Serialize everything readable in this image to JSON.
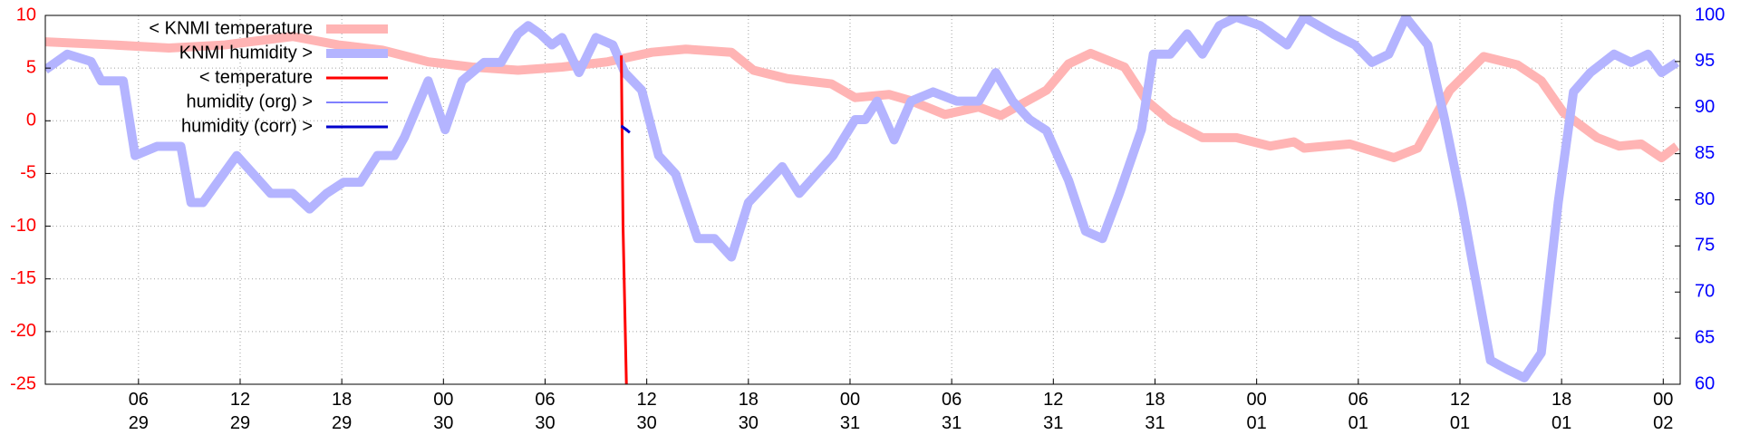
{
  "chart_data": {
    "type": "line",
    "xlim": [
      0.5,
      97
    ],
    "xticks": [
      {
        "value": 6,
        "label": "06\n29"
      },
      {
        "value": 12,
        "label": "12\n29"
      },
      {
        "value": 18,
        "label": "18\n29"
      },
      {
        "value": 24,
        "label": "00\n30"
      },
      {
        "value": 30,
        "label": "06\n30"
      },
      {
        "value": 36,
        "label": "12\n30"
      },
      {
        "value": 42,
        "label": "18\n30"
      },
      {
        "value": 48,
        "label": "00\n31"
      },
      {
        "value": 54,
        "label": "06\n31"
      },
      {
        "value": 60,
        "label": "12\n31"
      },
      {
        "value": 66,
        "label": "18\n31"
      },
      {
        "value": 72,
        "label": "00\n01"
      },
      {
        "value": 78,
        "label": "06\n01"
      },
      {
        "value": 84,
        "label": "12\n01"
      },
      {
        "value": 90,
        "label": "18\n01"
      },
      {
        "value": 96,
        "label": "00\n02"
      }
    ],
    "ylim": [
      -25,
      10
    ],
    "yticks": [
      -25,
      -20,
      -15,
      -10,
      -5,
      0,
      5,
      10
    ],
    "ytick_color": "#ff0000",
    "y2lim": [
      60,
      100
    ],
    "y2ticks": [
      60,
      65,
      70,
      75,
      80,
      85,
      90,
      95,
      100
    ],
    "y2tick_color": "#0000ff",
    "grid": true,
    "legend": "upper left",
    "series": [
      {
        "name": "< KNMI temperature",
        "color": "#ffb4b4",
        "width": 10,
        "x": [
          0.5,
          4.5,
          7.8,
          11.1,
          15.1,
          17.8,
          20.4,
          23.1,
          25.7,
          28.4,
          31.0,
          33.7,
          36.3,
          38.3,
          41.0,
          42.3,
          44.3,
          46.9,
          48.3,
          50.3,
          51.6,
          53.6,
          55.6,
          56.9,
          59.6,
          60.9,
          62.2,
          64.2,
          65.5,
          66.9,
          68.8,
          70.8,
          72.8,
          74.2,
          74.8,
          77.5,
          80.1,
          81.5,
          83.4,
          85.4,
          87.4,
          88.8,
          90.1,
          92.1,
          93.4,
          94.7,
          95.9,
          96.8
        ],
        "values": [
          7.5,
          7.2,
          6.9,
          7.2,
          8.0,
          7.2,
          6.7,
          5.6,
          5.1,
          4.8,
          5.1,
          5.6,
          6.5,
          6.8,
          6.5,
          4.8,
          4.0,
          3.5,
          2.2,
          2.5,
          1.9,
          0.6,
          1.3,
          0.5,
          2.9,
          5.4,
          6.4,
          5.1,
          1.9,
          0,
          -1.6,
          -1.6,
          -2.4,
          -2.0,
          -2.6,
          -2.2,
          -3.5,
          -2.6,
          2.9,
          6.1,
          5.3,
          3.8,
          0.8,
          -1.6,
          -2.4,
          -2.2,
          -3.5,
          -2.4
        ]
      },
      {
        "name": "KNMI humidity >",
        "color": "#b4b4ff",
        "width": 10,
        "axis": "y2",
        "x": [
          0.5,
          1.8,
          3.2,
          3.8,
          5.1,
          5.8,
          7.1,
          8.5,
          9.1,
          9.8,
          11.8,
          13.8,
          15.1,
          16.1,
          17.1,
          18.1,
          19.1,
          20.1,
          21.1,
          21.7,
          23.1,
          24.1,
          25.1,
          26.4,
          27.4,
          28.4,
          29.0,
          29.7,
          30.4,
          31.0,
          32.0,
          33.0,
          34.0,
          34.7,
          35.7,
          36.7,
          37.7,
          39.0,
          40.0,
          41.0,
          42.0,
          44.0,
          45.0,
          47.0,
          48.3,
          48.9,
          49.6,
          50.6,
          51.6,
          52.9,
          54.3,
          55.6,
          56.6,
          57.6,
          58.6,
          59.6,
          60.9,
          61.9,
          62.9,
          63.9,
          65.2,
          65.9,
          66.9,
          67.9,
          68.8,
          69.8,
          70.8,
          72.2,
          73.8,
          74.8,
          76.5,
          77.8,
          78.8,
          79.8,
          80.8,
          82.1,
          83.1,
          84.1,
          84.8,
          85.8,
          86.8,
          87.8,
          88.8,
          89.8,
          90.7,
          91.7,
          93.1,
          94.1,
          95.1,
          95.9,
          96.8
        ],
        "values": [
          94.1,
          95.8,
          95,
          92.9,
          92.9,
          84.8,
          85.8,
          85.8,
          79.7,
          79.7,
          84.8,
          80.7,
          80.7,
          79,
          80.7,
          81.9,
          81.9,
          84.8,
          84.8,
          86.8,
          92.9,
          87.6,
          92.9,
          94.9,
          94.9,
          98,
          98.9,
          98,
          96.8,
          97.6,
          93.8,
          97.6,
          96.8,
          93.8,
          91.9,
          84.8,
          82.8,
          75.8,
          75.8,
          73.8,
          79.7,
          83.6,
          80.7,
          84.8,
          88.7,
          88.7,
          90.7,
          86.5,
          90.7,
          91.7,
          90.7,
          90.7,
          93.8,
          90.7,
          88.7,
          87.5,
          82.1,
          76.6,
          75.8,
          80.7,
          87.6,
          95.8,
          95.8,
          98,
          95.8,
          98.9,
          99.8,
          98.9,
          96.8,
          99.8,
          98,
          96.8,
          94.9,
          95.8,
          99.8,
          96.8,
          88.7,
          79.7,
          72.6,
          62.6,
          61.6,
          60.7,
          63.4,
          79.7,
          91.7,
          93.8,
          95.8,
          94.9,
          95.8,
          93.8,
          94.9
        ]
      },
      {
        "name": "< temperature",
        "color": "#ff0000",
        "width": 3,
        "x": [
          34.5,
          34.6,
          34.8
        ],
        "values": [
          6.2,
          -10,
          -25
        ]
      },
      {
        "name": "humidity (org) >",
        "color": "#0000ff",
        "width": 1,
        "axis": "y2",
        "x": [
          34.5,
          34.9
        ],
        "values": [
          88.1,
          87.6
        ]
      },
      {
        "name": "humidity (corr) >",
        "color": "#0000cc",
        "width": 3,
        "axis": "y2",
        "x": [
          34.5,
          35.0
        ],
        "values": [
          88.0,
          87.3
        ]
      }
    ]
  }
}
